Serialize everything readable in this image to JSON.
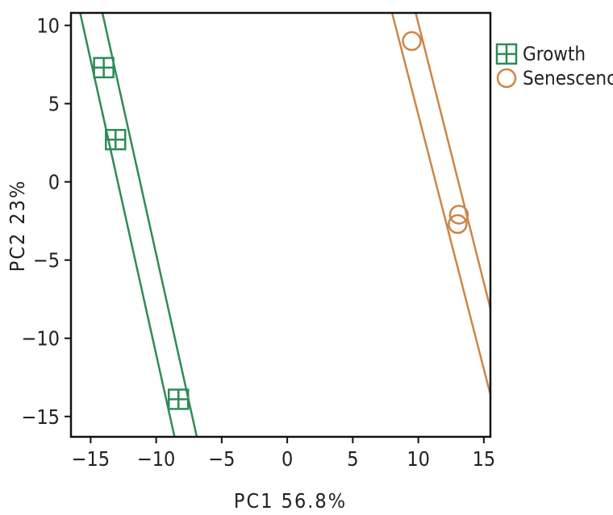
{
  "chart_data": {
    "type": "scatter",
    "xlabel": "PC1 56.8%",
    "ylabel": "PC2 23%",
    "xlim": [
      -16.5,
      15.5
    ],
    "ylim": [
      -16.3,
      10.8
    ],
    "x_ticks": [
      -15,
      -10,
      -5,
      0,
      5,
      10,
      15
    ],
    "x_tick_labels": [
      "−15",
      "−10",
      "−5",
      "0",
      "5",
      "10",
      "15"
    ],
    "y_ticks": [
      10,
      5,
      0,
      -5,
      -10,
      -15
    ],
    "y_tick_labels": [
      "10",
      "5",
      "0",
      "−5",
      "−10",
      "−15"
    ],
    "grid": false,
    "legend_position": "right",
    "series": [
      {
        "name": "Growth",
        "marker": "square-cross",
        "color": "#2e8b57",
        "points": [
          {
            "x": -14.0,
            "y": 7.3
          },
          {
            "x": -13.1,
            "y": 2.7
          },
          {
            "x": -8.3,
            "y": -13.9
          }
        ],
        "band_lines": [
          {
            "x1": -15.8,
            "y1": 10.8,
            "x2": -8.6,
            "y2": -16.3
          },
          {
            "x1": -14.1,
            "y1": 10.8,
            "x2": -6.9,
            "y2": -16.3
          }
        ]
      },
      {
        "name": "Senescence",
        "marker": "circle",
        "color": "#cd8547",
        "points": [
          {
            "x": 9.5,
            "y": 9.0
          },
          {
            "x": 13.1,
            "y": -2.1
          },
          {
            "x": 13.0,
            "y": -2.7
          }
        ],
        "band_lines": [
          {
            "x1": 8.0,
            "y1": 10.8,
            "x2": 15.5,
            "y2": -13.6
          },
          {
            "x1": 9.8,
            "y1": 10.8,
            "x2": 15.5,
            "y2": -8.1
          }
        ]
      }
    ]
  }
}
